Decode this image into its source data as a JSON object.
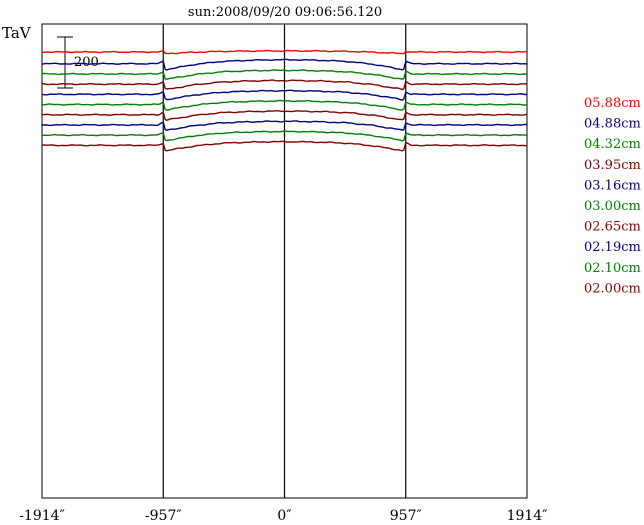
{
  "chart_data": {
    "type": "line",
    "title": "sun:2008/09/20 09:06:56.120",
    "ylabel": "TaV",
    "scale_bar_label": "200",
    "scale_bar_value": 200,
    "xlim": [
      -1914,
      1914
    ],
    "x_ticks": [
      {
        "value": -1914,
        "label": "-1914″"
      },
      {
        "value": -957,
        "label": "-957″"
      },
      {
        "value": 0,
        "label": "0″"
      },
      {
        "value": 957,
        "label": "957″"
      },
      {
        "value": 1914,
        "label": "1914″"
      }
    ],
    "vertical_markers": [
      -957,
      0,
      957
    ],
    "grid": false,
    "legend_position": "right",
    "series": [
      {
        "name": "05.88cm",
        "color": "#ff0000",
        "baseline": 0
      },
      {
        "name": "04.88cm",
        "color": "#000080",
        "baseline": -46
      },
      {
        "name": "04.32cm",
        "color": "#008000",
        "baseline": -86
      },
      {
        "name": "03.95cm",
        "color": "#800000",
        "baseline": -126
      },
      {
        "name": "03.16cm",
        "color": "#000080",
        "baseline": -166
      },
      {
        "name": "03.00cm",
        "color": "#008000",
        "baseline": -206
      },
      {
        "name": "02.65cm",
        "color": "#800000",
        "baseline": -246
      },
      {
        "name": "02.19cm",
        "color": "#000080",
        "baseline": -286
      },
      {
        "name": "02.10cm",
        "color": "#008000",
        "baseline": -326
      },
      {
        "name": "02.00cm",
        "color": "#800000",
        "baseline": -366
      }
    ],
    "profile": {
      "x": [
        -1914,
        -1200,
        -1000,
        -980,
        -957,
        -940,
        -900,
        -850,
        -700,
        -500,
        -300,
        -100,
        0,
        100,
        300,
        500,
        700,
        850,
        900,
        940,
        957,
        980,
        1000,
        1200,
        1914
      ],
      "y": [
        0,
        0,
        0,
        4,
        10,
        -22,
        -18,
        -14,
        -2,
        8,
        12,
        14,
        14,
        14,
        12,
        8,
        -2,
        -14,
        -18,
        -22,
        10,
        4,
        0,
        0,
        0
      ]
    },
    "amplitude": [
      0.3,
      1.1,
      1.0,
      1.0,
      1.0,
      1.0,
      1.0,
      1.0,
      1.0,
      1.0
    ]
  }
}
